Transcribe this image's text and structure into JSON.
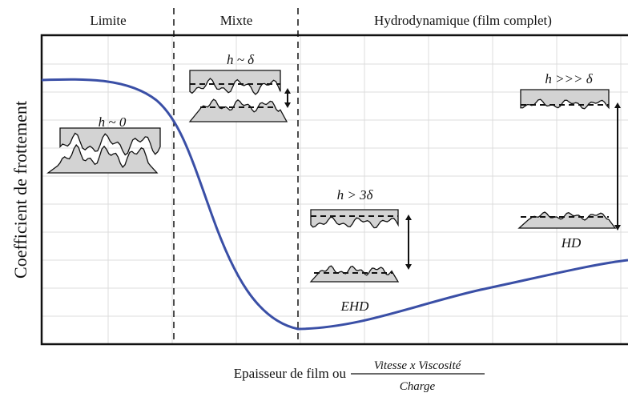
{
  "regions": [
    "Limite",
    "Mixte",
    "Hydrodynamique (film complet)"
  ],
  "y_axis_label": "Coefficient de frottement",
  "x_axis_label": {
    "text": "Epaisseur de film ou",
    "numerator": "Vitesse x Viscosité",
    "denominator": "Charge"
  },
  "annotations": [
    "h ~ 0",
    "h ~ δ",
    "h > 3δ",
    "EHD",
    "h >>> δ",
    "HD"
  ]
}
